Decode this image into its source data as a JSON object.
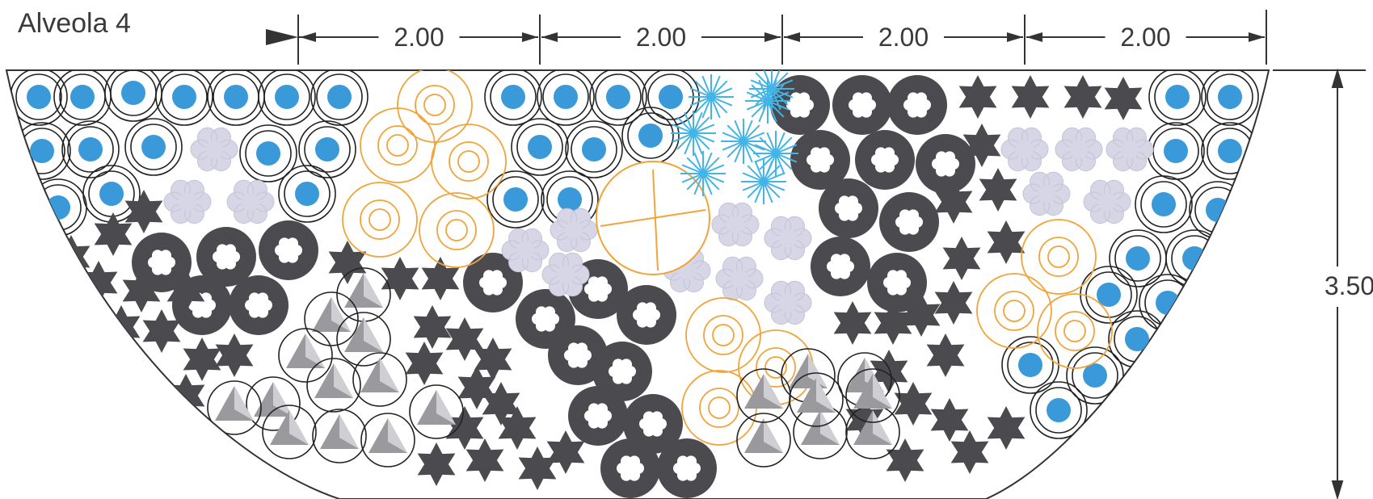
{
  "title": "Alveola 4",
  "dimensions": {
    "top_segments": [
      "2.00",
      "2.00",
      "2.00",
      "2.00"
    ],
    "depth": "3.50"
  },
  "colors": {
    "blue_fill": "#3a9ad9",
    "dark": "#4b4b4f",
    "lavender": "#d6d6e6",
    "orange": "#f0a43a",
    "cyan": "#43b4e6",
    "gray_triangle": "#9a9a9e",
    "line": "#333333"
  },
  "legend_symbols": [
    "blue-dot-double-ring",
    "dark-ring-flower",
    "dark-star",
    "lavender-flower",
    "orange-concentric-rings",
    "orange-cross-circle",
    "cyan-starburst",
    "gray-triangle-circle"
  ]
}
